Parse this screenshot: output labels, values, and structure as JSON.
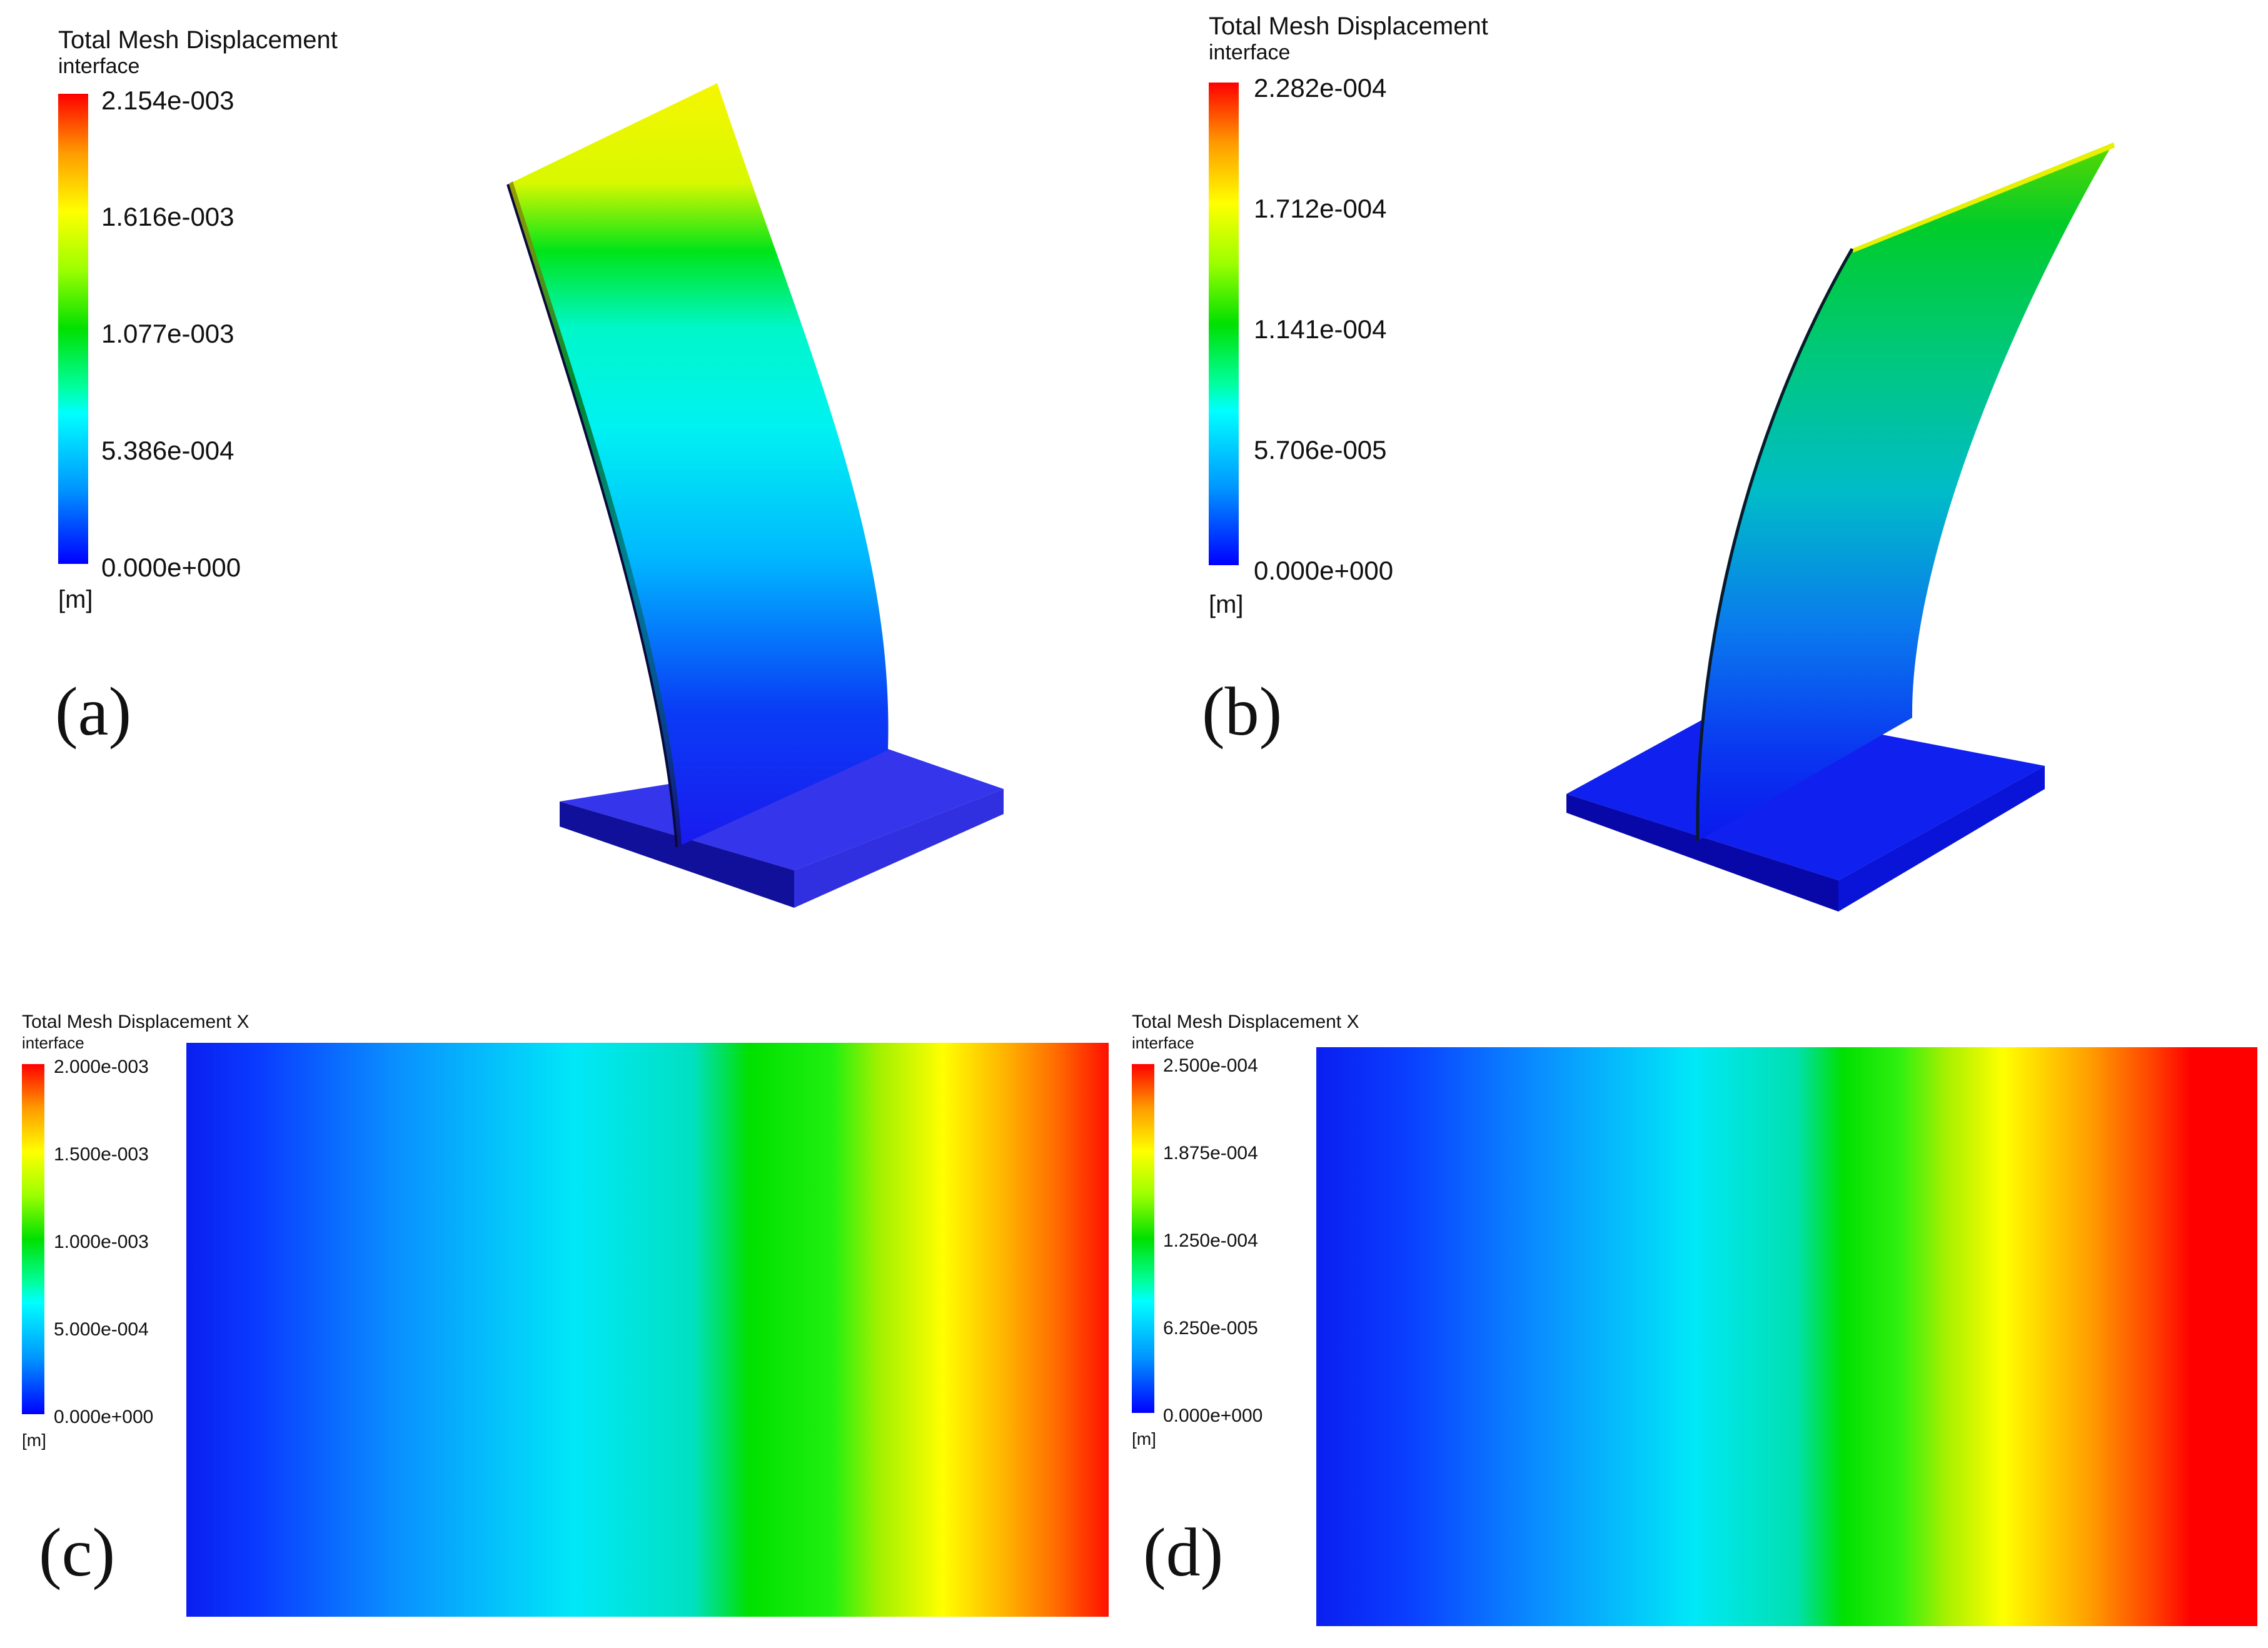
{
  "panels": [
    {
      "label": "(a)",
      "legend": {
        "title": "Total Mesh Displacement",
        "subtitle": "interface",
        "ticks": [
          "2.154e-003",
          "1.616e-003",
          "1.077e-003",
          "5.386e-004",
          "0.000e+000"
        ],
        "unit": "[m]"
      }
    },
    {
      "label": "(b)",
      "legend": {
        "title": "Total Mesh Displacement",
        "subtitle": "interface",
        "ticks": [
          "2.282e-004",
          "1.712e-004",
          "1.141e-004",
          "5.706e-005",
          "0.000e+000"
        ],
        "unit": "[m]"
      }
    },
    {
      "label": "(c)",
      "legend": {
        "title": "Total Mesh Displacement X",
        "subtitle": "interface",
        "ticks": [
          "2.000e-003",
          "1.500e-003",
          "1.000e-003",
          "5.000e-004",
          "0.000e+000"
        ],
        "unit": "[m]"
      }
    },
    {
      "label": "(d)",
      "legend": {
        "title": "Total Mesh Displacement X",
        "subtitle": "interface",
        "ticks": [
          "2.500e-004",
          "1.875e-004",
          "1.250e-004",
          "6.250e-005",
          "0.000e+000"
        ],
        "unit": "[m]"
      }
    }
  ],
  "colormap": [
    "#0000ff",
    "#0096ff",
    "#00ffff",
    "#00e000",
    "#ffff00",
    "#ff9a00",
    "#ff0000"
  ]
}
